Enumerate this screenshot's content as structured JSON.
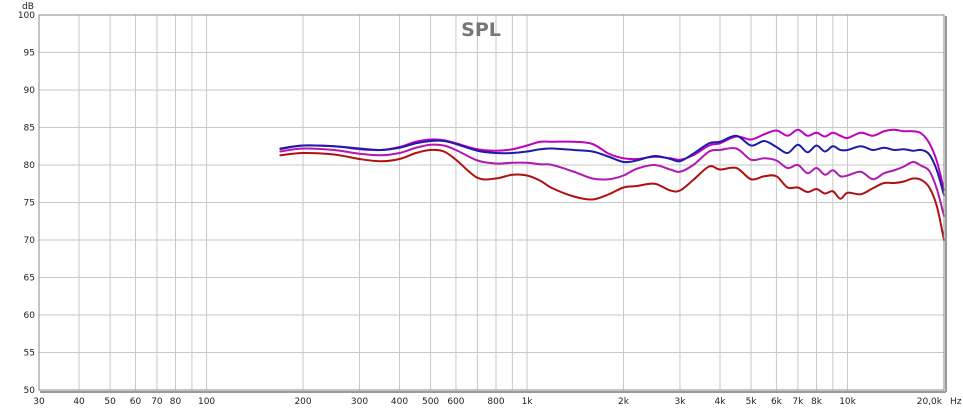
{
  "chart_data": {
    "type": "line",
    "title": "SPL",
    "ylabel": "dB",
    "xunit": "Hz",
    "xscale": "log",
    "xlim": [
      30,
      20000
    ],
    "ylim": [
      50,
      100
    ],
    "grid": true,
    "yticks": [
      50,
      55,
      60,
      65,
      70,
      75,
      80,
      85,
      90,
      95,
      100
    ],
    "xticks": [
      {
        "v": 30,
        "l": "30"
      },
      {
        "v": 40,
        "l": "40"
      },
      {
        "v": 50,
        "l": "50"
      },
      {
        "v": 60,
        "l": "60"
      },
      {
        "v": 70,
        "l": "70"
      },
      {
        "v": 80,
        "l": "80"
      },
      {
        "v": 90,
        "l": ""
      },
      {
        "v": 100,
        "l": "100"
      },
      {
        "v": 200,
        "l": "200"
      },
      {
        "v": 300,
        "l": "300"
      },
      {
        "v": 400,
        "l": "400"
      },
      {
        "v": 500,
        "l": "500"
      },
      {
        "v": 600,
        "l": "600"
      },
      {
        "v": 700,
        "l": ""
      },
      {
        "v": 800,
        "l": "800"
      },
      {
        "v": 900,
        "l": ""
      },
      {
        "v": 1000,
        "l": "1k"
      },
      {
        "v": 2000,
        "l": "2k"
      },
      {
        "v": 3000,
        "l": "3k"
      },
      {
        "v": 4000,
        "l": "4k"
      },
      {
        "v": 5000,
        "l": "5k"
      },
      {
        "v": 6000,
        "l": "6k"
      },
      {
        "v": 7000,
        "l": "7k"
      },
      {
        "v": 8000,
        "l": "8k"
      },
      {
        "v": 9000,
        "l": ""
      },
      {
        "v": 10000,
        "l": "10k"
      },
      {
        "v": 20000,
        "l": "20,0k"
      }
    ],
    "series": [
      {
        "color": "#c000c0",
        "x": [
          170,
          200,
          250,
          300,
          350,
          400,
          450,
          500,
          550,
          600,
          700,
          800,
          900,
          1000,
          1100,
          1200,
          1400,
          1600,
          1800,
          2000,
          2200,
          2500,
          2800,
          3000,
          3300,
          3700,
          4000,
          4500,
          5000,
          5500,
          6000,
          6500,
          7000,
          7500,
          8000,
          8500,
          9000,
          9500,
          10000,
          11000,
          12000,
          13000,
          14000,
          15000,
          16000,
          17000,
          18000,
          19000,
          20000
        ],
        "y": [
          82.1,
          82.6,
          82.5,
          82.1,
          82.0,
          82.4,
          83.1,
          83.4,
          83.3,
          82.9,
          82.1,
          81.9,
          82.1,
          82.6,
          83.1,
          83.1,
          83.1,
          82.8,
          81.5,
          80.9,
          80.8,
          81.1,
          80.9,
          80.7,
          81.3,
          82.6,
          82.9,
          83.8,
          83.4,
          84.1,
          84.6,
          83.9,
          84.7,
          83.9,
          84.3,
          83.8,
          84.3,
          83.9,
          83.6,
          84.3,
          83.9,
          84.5,
          84.7,
          84.5,
          84.5,
          84.2,
          82.9,
          80.5,
          76.7
        ]
      },
      {
        "color": "#1c1ca8",
        "x": [
          170,
          200,
          250,
          300,
          350,
          400,
          450,
          500,
          550,
          600,
          700,
          800,
          900,
          1000,
          1100,
          1200,
          1400,
          1600,
          1800,
          2000,
          2200,
          2500,
          2800,
          3000,
          3300,
          3700,
          4000,
          4500,
          5000,
          5500,
          6000,
          6500,
          7000,
          7500,
          8000,
          8500,
          9000,
          9500,
          10000,
          11000,
          12000,
          13000,
          14000,
          15000,
          16000,
          17000,
          18000,
          19000,
          20000
        ],
        "y": [
          82.2,
          82.6,
          82.5,
          82.2,
          82.0,
          82.3,
          82.9,
          83.2,
          83.2,
          82.8,
          81.9,
          81.6,
          81.6,
          81.8,
          82.1,
          82.2,
          82.0,
          81.8,
          81.1,
          80.4,
          80.6,
          81.2,
          80.8,
          80.5,
          81.5,
          82.9,
          83.1,
          83.9,
          82.6,
          83.2,
          82.4,
          81.6,
          82.7,
          81.7,
          82.6,
          81.8,
          82.5,
          82.0,
          82.0,
          82.5,
          82.0,
          82.3,
          82.0,
          82.1,
          81.9,
          82.0,
          81.4,
          79.3,
          76.0
        ]
      },
      {
        "color": "#b018b0",
        "x": [
          170,
          200,
          250,
          300,
          350,
          400,
          450,
          500,
          550,
          600,
          700,
          800,
          900,
          1000,
          1100,
          1200,
          1400,
          1600,
          1800,
          2000,
          2200,
          2500,
          2800,
          3000,
          3300,
          3700,
          4000,
          4500,
          5000,
          5500,
          6000,
          6500,
          7000,
          7500,
          8000,
          8500,
          9000,
          9500,
          10000,
          11000,
          12000,
          13000,
          14000,
          15000,
          16000,
          17000,
          18000,
          19000,
          20000
        ],
        "y": [
          81.8,
          82.2,
          82.0,
          81.5,
          81.3,
          81.6,
          82.3,
          82.7,
          82.6,
          82.0,
          80.6,
          80.2,
          80.3,
          80.3,
          80.1,
          80.0,
          79.1,
          78.2,
          78.1,
          78.6,
          79.5,
          80.0,
          79.4,
          79.1,
          80.0,
          81.8,
          82.0,
          82.2,
          80.7,
          80.9,
          80.6,
          79.6,
          80.0,
          78.9,
          79.6,
          78.7,
          79.3,
          78.5,
          78.6,
          79.1,
          78.1,
          78.9,
          79.3,
          79.8,
          80.4,
          79.9,
          79.2,
          76.8,
          73.2
        ]
      },
      {
        "color": "#b01010",
        "x": [
          170,
          200,
          250,
          300,
          350,
          400,
          450,
          500,
          550,
          600,
          700,
          800,
          900,
          1000,
          1100,
          1200,
          1400,
          1600,
          1800,
          2000,
          2200,
          2500,
          2800,
          3000,
          3300,
          3700,
          4000,
          4500,
          5000,
          5500,
          6000,
          6500,
          7000,
          7500,
          8000,
          8500,
          9000,
          9500,
          10000,
          11000,
          12000,
          13000,
          14000,
          15000,
          16000,
          17000,
          18000,
          19000,
          20000
        ],
        "y": [
          81.3,
          81.6,
          81.4,
          80.8,
          80.5,
          80.8,
          81.6,
          82.0,
          81.8,
          80.7,
          78.3,
          78.2,
          78.7,
          78.6,
          77.9,
          76.9,
          75.8,
          75.4,
          76.1,
          77.0,
          77.2,
          77.5,
          76.6,
          76.6,
          78.0,
          79.8,
          79.4,
          79.6,
          78.1,
          78.5,
          78.5,
          77.0,
          77.0,
          76.4,
          76.8,
          76.2,
          76.5,
          75.5,
          76.3,
          76.1,
          76.9,
          77.6,
          77.6,
          77.8,
          78.2,
          78.0,
          77.0,
          74.5,
          70.0
        ]
      }
    ]
  }
}
